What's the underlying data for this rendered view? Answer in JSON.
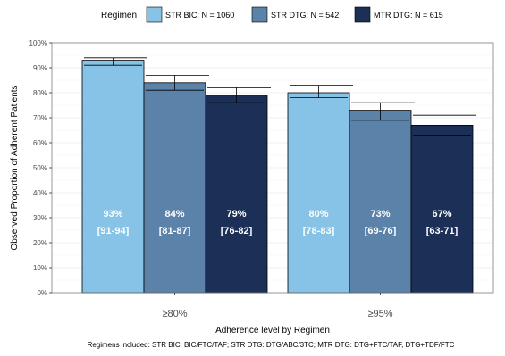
{
  "chart_data": {
    "type": "bar",
    "categories": [
      "≥80%",
      "≥95%"
    ],
    "legend_title": "Regimen",
    "series": [
      {
        "name": "STR BIC: N = 1060",
        "color": "#86c3e6",
        "values": [
          93,
          80
        ],
        "ci_low": [
          91,
          78
        ],
        "ci_high": [
          94,
          83
        ],
        "labels": [
          "93%",
          "80%"
        ],
        "ci_labels": [
          "[91-94]",
          "[78-83]"
        ]
      },
      {
        "name": "STR DTG: N = 542",
        "color": "#5b82a8",
        "values": [
          84,
          73
        ],
        "ci_low": [
          81,
          69
        ],
        "ci_high": [
          87,
          76
        ],
        "labels": [
          "84%",
          "73%"
        ],
        "ci_labels": [
          "[81-87]",
          "[69-76]"
        ]
      },
      {
        "name": "MTR DTG: N = 615",
        "color": "#1c2f56",
        "values": [
          79,
          67
        ],
        "ci_low": [
          76,
          63
        ],
        "ci_high": [
          82,
          71
        ],
        "labels": [
          "79%",
          "67%"
        ],
        "ci_labels": [
          "[76-82]",
          "[63-71]"
        ]
      }
    ],
    "ylabel": "Observed Proportion of Adherent Patients",
    "xlabel": "Adherence level by Regimen",
    "ylim": [
      0,
      100
    ],
    "yticks": [
      0,
      10,
      20,
      30,
      40,
      50,
      60,
      70,
      80,
      90,
      100
    ],
    "ytick_labels": [
      "0%",
      "10%",
      "20%",
      "30%",
      "40%",
      "50%",
      "60%",
      "70%",
      "80%",
      "90%",
      "100%"
    ],
    "grid": true,
    "legend_position": "top",
    "footnote": "Regimens included: STR BIC: BIC/FTC/TAF;  STR DTG: DTG/ABC/3TC;  MTR DTG: DTG+FTC/TAF, DTG+TDF/FTC"
  }
}
